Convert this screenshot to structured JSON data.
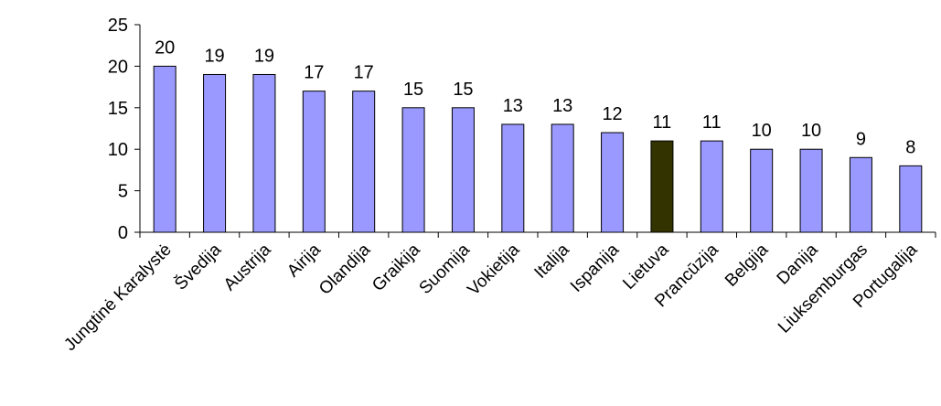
{
  "chart_data": {
    "type": "bar",
    "categories": [
      "Jungtinė Karalystė",
      "Švedija",
      "Austrija",
      "Airija",
      "Olandija",
      "Graikija",
      "Suomija",
      "Vokietija",
      "Italija",
      "Ispanija",
      "Lietuva",
      "Prancūzija",
      "Belgija",
      "Danija",
      "Liuksemburgas",
      "Portugalija"
    ],
    "values": [
      20,
      19,
      19,
      17,
      17,
      15,
      15,
      13,
      13,
      12,
      11,
      11,
      10,
      10,
      9,
      8
    ],
    "highlight_category": "Lietuva",
    "ylim": [
      0,
      25
    ],
    "yticks": [
      0,
      5,
      10,
      15,
      20,
      25
    ],
    "grid": false,
    "legend": "none",
    "colors": {
      "bar": "#9999ff",
      "bar_highlight": "#333300",
      "stroke": "#000000"
    }
  }
}
